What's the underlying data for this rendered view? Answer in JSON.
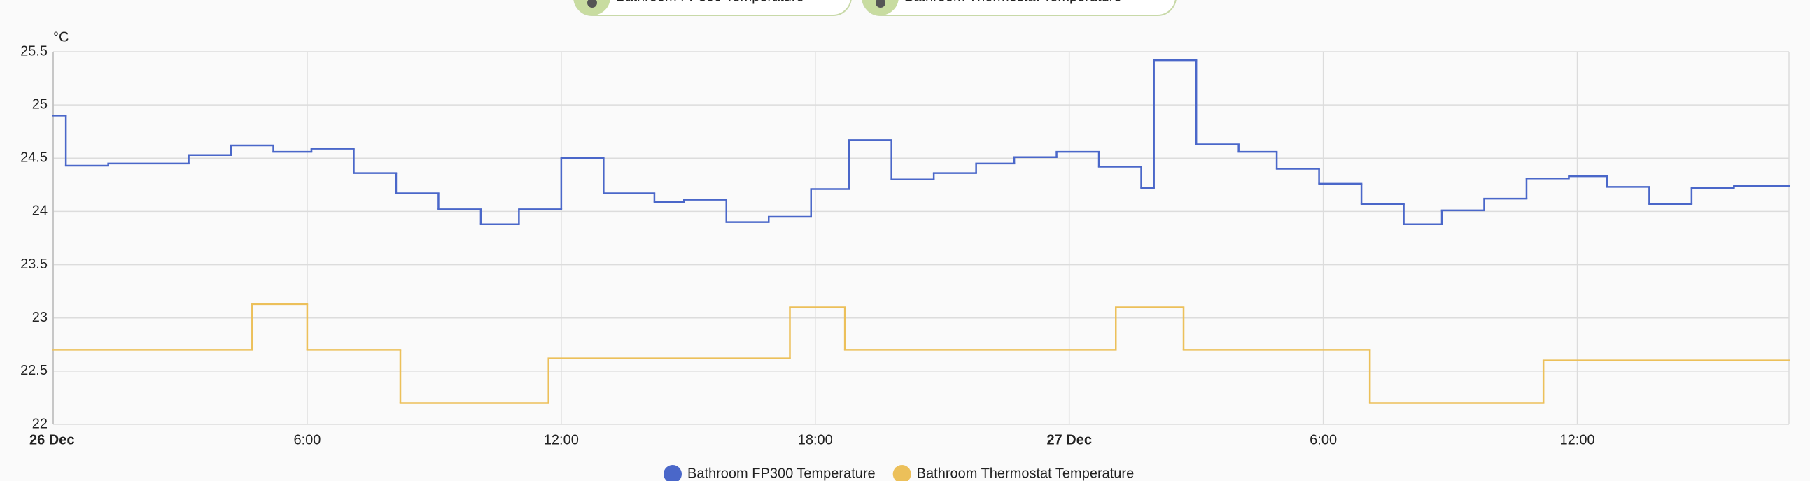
{
  "chart_data": {
    "type": "line",
    "step": "post",
    "y_unit": "°C",
    "xlim": [
      0,
      41
    ],
    "xticks": [
      {
        "value": 0,
        "label": "26 Dec"
      },
      {
        "value": 6,
        "label": "6:00"
      },
      {
        "value": 12,
        "label": "12:00"
      },
      {
        "value": 18,
        "label": "18:00"
      },
      {
        "value": 24,
        "label": "27 Dec"
      },
      {
        "value": 30,
        "label": "6:00"
      },
      {
        "value": 36,
        "label": "12:00"
      }
    ],
    "ylim": [
      22,
      25.5
    ],
    "yticks": [
      22,
      22.5,
      23,
      23.5,
      24,
      24.5,
      25,
      25.5
    ],
    "grid": true,
    "series": [
      {
        "name": "Bathroom FP300 Temperature",
        "color": "#4a67c9",
        "x": [
          0,
          0.3,
          1.3,
          3.2,
          4.2,
          5.2,
          6.1,
          7.1,
          8.1,
          9.1,
          10.1,
          11.0,
          12.0,
          13.0,
          14.2,
          14.9,
          15.9,
          16.9,
          17.9,
          18.8,
          19.8,
          20.8,
          21.8,
          22.7,
          23.7,
          24.7,
          25.7,
          26.0,
          27.0,
          28.0,
          28.9,
          29.9,
          30.9,
          31.9,
          32.8,
          33.8,
          34.8,
          35.8,
          36.7,
          37.7,
          38.7,
          39.7
        ],
        "values": [
          24.9,
          24.43,
          24.45,
          24.53,
          24.62,
          24.56,
          24.59,
          24.36,
          24.17,
          24.02,
          23.88,
          24.02,
          24.5,
          24.17,
          24.09,
          24.11,
          23.9,
          23.95,
          24.21,
          24.67,
          24.3,
          24.36,
          24.45,
          24.51,
          24.56,
          24.42,
          24.22,
          25.42,
          24.63,
          24.56,
          24.4,
          24.26,
          24.07,
          23.88,
          24.01,
          24.12,
          24.31,
          24.33,
          24.23,
          24.07,
          24.22,
          24.24
        ]
      },
      {
        "name": "Bathroom Thermostat Temperature",
        "color": "#ecc05a",
        "x": [
          0,
          4.7,
          6.0,
          8.2,
          11.7,
          17.4,
          18.7,
          25.1,
          26.7,
          31.1,
          35.2
        ],
        "values": [
          22.7,
          23.13,
          22.7,
          22.2,
          22.62,
          23.1,
          22.7,
          23.1,
          22.7,
          22.2,
          22.6
        ]
      }
    ]
  }
}
